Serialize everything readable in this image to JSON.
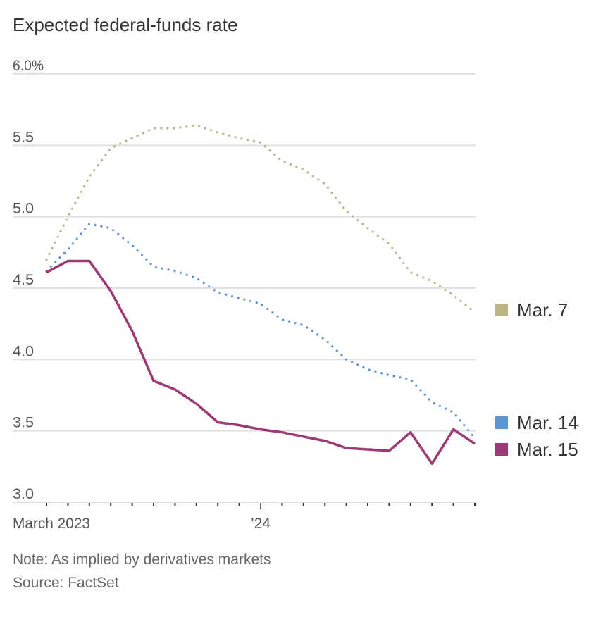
{
  "chart_data": {
    "type": "line",
    "title": "Expected federal-funds rate",
    "xlabel": "",
    "ylabel": "",
    "ylim": [
      3.0,
      6.0
    ],
    "y_ticks": [
      3.0,
      3.5,
      4.0,
      4.5,
      5.0,
      5.5,
      6.0
    ],
    "y_tick_labels": [
      "3.0",
      "3.5",
      "4.0",
      "4.5",
      "5.0",
      "5.5",
      "6.0%"
    ],
    "x": [
      "Mar 2023",
      "Apr 2023",
      "May 2023",
      "Jun 2023",
      "Jul 2023",
      "Aug 2023",
      "Sep 2023",
      "Oct 2023",
      "Nov 2023",
      "Dec 2023",
      "Jan 2024",
      "Feb 2024",
      "Mar 2024",
      "Apr 2024",
      "May 2024",
      "Jun 2024",
      "Jul 2024",
      "Aug 2024",
      "Sep 2024",
      "Oct 2024",
      "Nov 2024"
    ],
    "x_tick_labels": [
      {
        "index": 0,
        "label": "March 2023"
      },
      {
        "index": 10,
        "label": "’24"
      }
    ],
    "grid": true,
    "legend_position": "right",
    "series": [
      {
        "name": "Mar. 7",
        "color": "#b8b486",
        "style": "dotted",
        "values": [
          4.7,
          5.0,
          5.28,
          5.48,
          5.55,
          5.62,
          5.62,
          5.64,
          5.59,
          5.55,
          5.52,
          5.39,
          5.33,
          5.23,
          5.04,
          4.92,
          4.81,
          4.61,
          4.55,
          4.45,
          4.33
        ]
      },
      {
        "name": "Mar. 14",
        "color": "#5b93d3",
        "style": "dotted",
        "values": [
          4.62,
          4.77,
          4.95,
          4.92,
          4.8,
          4.65,
          4.62,
          4.57,
          4.47,
          4.43,
          4.39,
          4.28,
          4.24,
          4.14,
          4.0,
          3.93,
          3.89,
          3.86,
          3.7,
          3.63,
          3.45
        ]
      },
      {
        "name": "Mar. 15",
        "color": "#9b3a74",
        "style": "solid",
        "values": [
          4.61,
          4.69,
          4.69,
          4.48,
          4.2,
          3.85,
          3.79,
          3.69,
          3.56,
          3.54,
          3.51,
          3.49,
          3.46,
          3.43,
          3.38,
          3.37,
          3.36,
          3.49,
          3.27,
          3.51,
          3.41
        ]
      }
    ]
  },
  "notes": {
    "note": "Note: As implied by derivatives markets",
    "source": "Source: FactSet"
  }
}
